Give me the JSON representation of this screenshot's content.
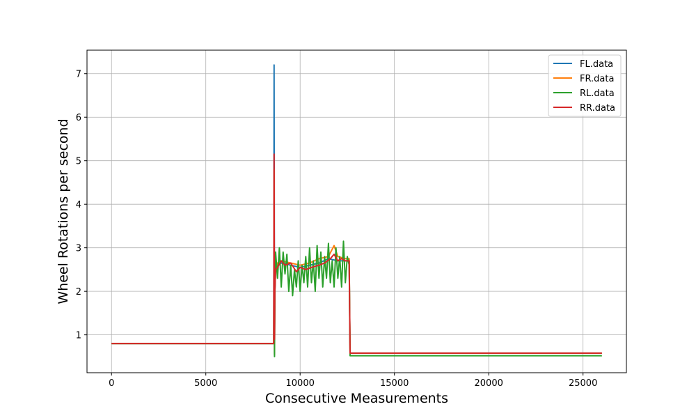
{
  "chart_data": {
    "type": "line",
    "title": "",
    "xlabel": "Consecutive Measurements",
    "ylabel": "Wheel Rotations per second",
    "xlim": [
      -1300,
      27300
    ],
    "ylim": [
      0.13,
      7.54
    ],
    "xticks": [
      0,
      5000,
      10000,
      15000,
      20000,
      25000
    ],
    "yticks": [
      1,
      2,
      3,
      4,
      5,
      6,
      7
    ],
    "grid": true,
    "legend_position": "top-right",
    "series": [
      {
        "name": "FL.data",
        "color": "#1f77b4",
        "x": [
          0,
          8600,
          8620,
          8640,
          8660,
          8700,
          8800,
          9000,
          9500,
          10000,
          10500,
          11000,
          11500,
          12000,
          12400,
          12600,
          12650,
          12700,
          15000,
          20000,
          26000
        ],
        "y": [
          0.8,
          0.8,
          7.2,
          0.55,
          2.0,
          2.5,
          2.6,
          2.65,
          2.6,
          2.55,
          2.6,
          2.65,
          2.75,
          2.7,
          2.7,
          2.7,
          0.58,
          0.58,
          0.58,
          0.58,
          0.58
        ]
      },
      {
        "name": "FR.data",
        "color": "#ff7f0e",
        "x": [
          0,
          8600,
          8620,
          8640,
          8660,
          8700,
          8800,
          9000,
          9500,
          10000,
          10500,
          11000,
          11500,
          11800,
          12000,
          12400,
          12600,
          12650,
          12700,
          15000,
          20000,
          26000
        ],
        "y": [
          0.8,
          0.8,
          4.8,
          0.55,
          2.0,
          2.5,
          2.65,
          2.7,
          2.65,
          2.6,
          2.65,
          2.75,
          2.8,
          3.05,
          2.8,
          2.75,
          2.75,
          0.58,
          0.58,
          0.58,
          0.58,
          0.58
        ]
      },
      {
        "name": "RL.data",
        "color": "#2ca02c",
        "x": [
          0,
          8600,
          8620,
          8640,
          8660,
          8700,
          8800,
          8900,
          9000,
          9100,
          9200,
          9300,
          9400,
          9500,
          9600,
          9700,
          9800,
          9900,
          10000,
          10100,
          10200,
          10300,
          10400,
          10500,
          10600,
          10700,
          10800,
          10900,
          11000,
          11100,
          11200,
          11300,
          11400,
          11500,
          11600,
          11700,
          11800,
          11900,
          12000,
          12100,
          12200,
          12300,
          12400,
          12500,
          12600,
          12650,
          12700,
          15000,
          20000,
          26000
        ],
        "y": [
          0.8,
          0.8,
          3.0,
          0.5,
          1.9,
          2.9,
          2.3,
          3.0,
          2.1,
          2.9,
          2.4,
          2.85,
          2.0,
          2.6,
          1.9,
          2.5,
          2.1,
          2.7,
          2.0,
          2.6,
          2.2,
          2.8,
          2.1,
          3.0,
          2.2,
          2.7,
          2.0,
          3.05,
          2.3,
          2.9,
          2.1,
          2.8,
          2.3,
          3.1,
          2.2,
          2.7,
          2.1,
          3.0,
          2.3,
          2.8,
          2.1,
          3.15,
          2.2,
          2.8,
          2.6,
          0.52,
          0.52,
          0.52,
          0.52,
          0.52
        ]
      },
      {
        "name": "RR.data",
        "color": "#d62728",
        "x": [
          0,
          8600,
          8620,
          8640,
          8660,
          8700,
          8800,
          9000,
          9200,
          9500,
          9800,
          10000,
          10300,
          10600,
          11000,
          11300,
          11600,
          11800,
          12000,
          12200,
          12400,
          12600,
          12650,
          12700,
          15000,
          20000,
          26000
        ],
        "y": [
          0.8,
          0.8,
          5.15,
          0.9,
          2.0,
          2.5,
          2.55,
          2.7,
          2.6,
          2.65,
          2.45,
          2.55,
          2.5,
          2.55,
          2.6,
          2.65,
          2.75,
          2.85,
          2.7,
          2.75,
          2.7,
          2.7,
          0.58,
          0.58,
          0.58,
          0.58,
          0.58
        ]
      }
    ]
  }
}
